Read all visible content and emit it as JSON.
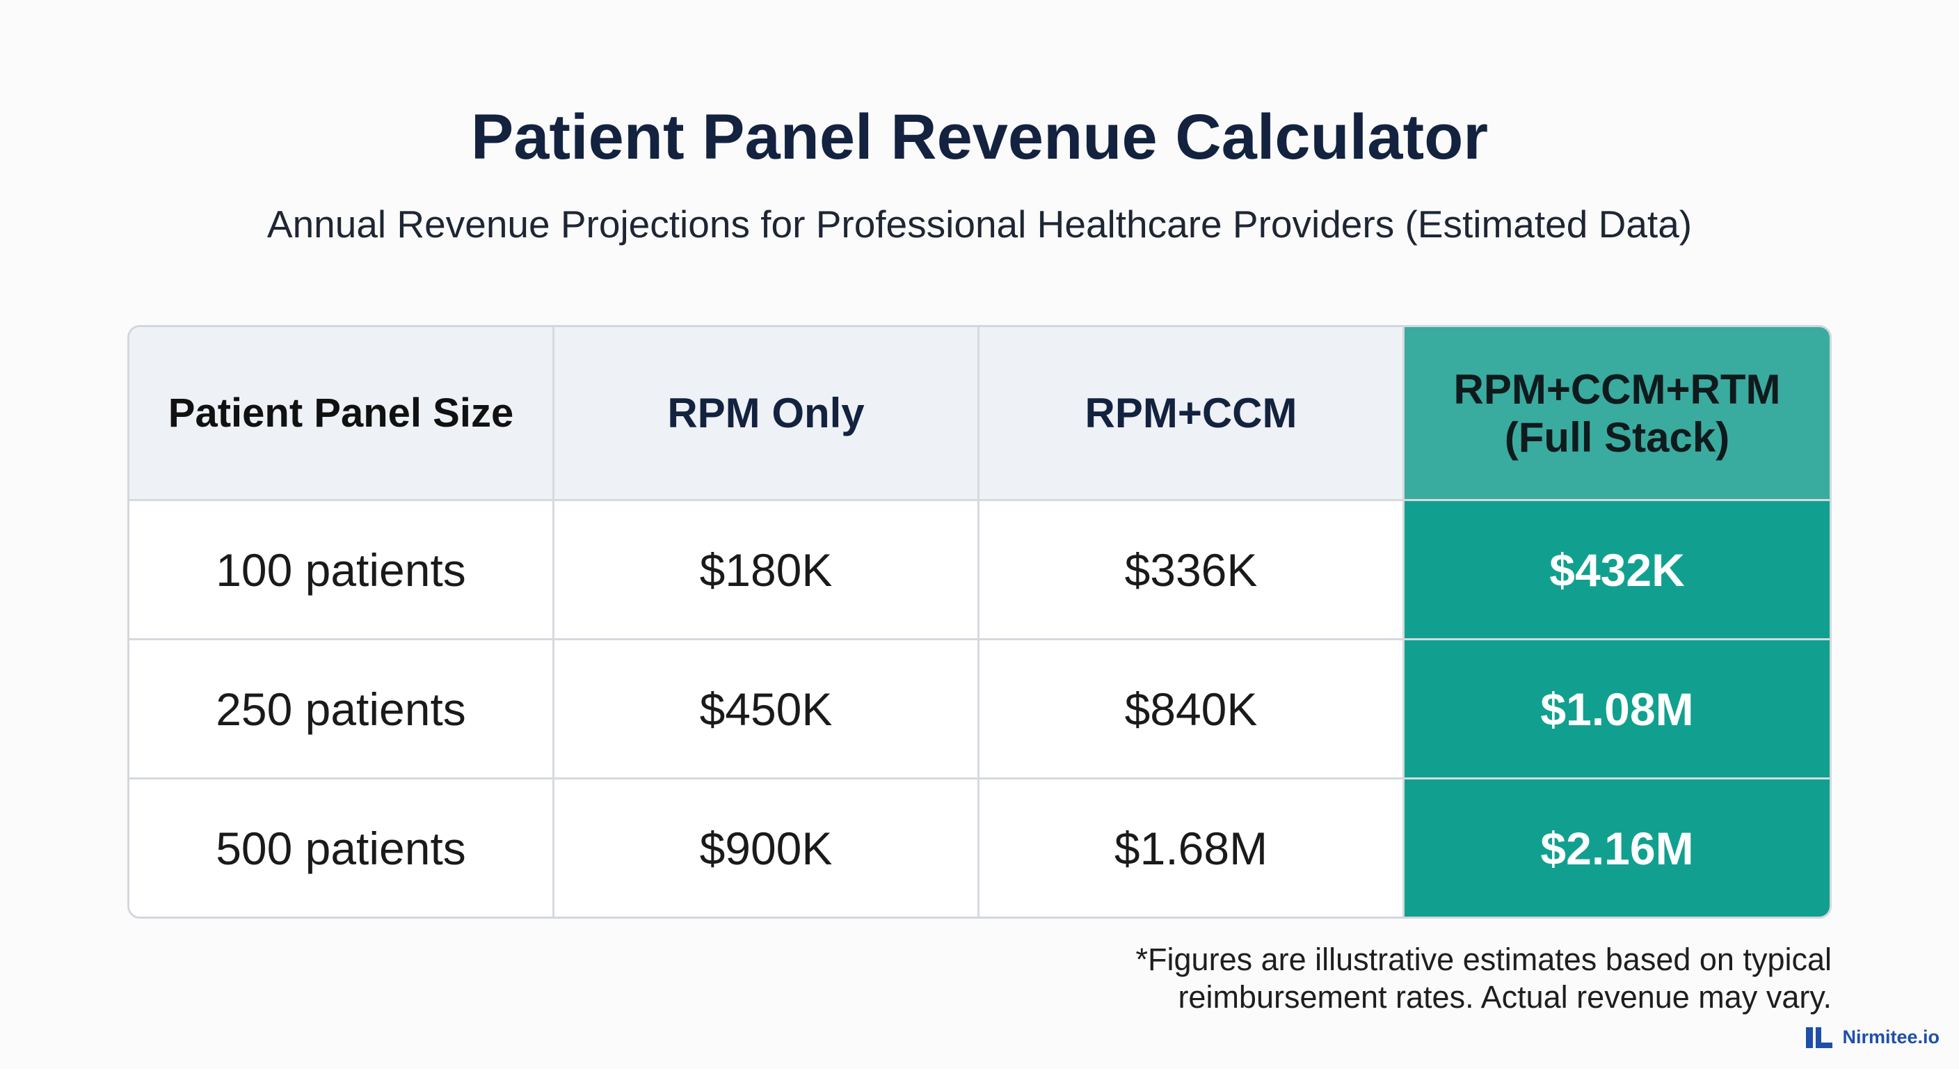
{
  "header": {
    "title": "Patient Panel Revenue Calculator",
    "subtitle": "Annual Revenue Projections for Professional Healthcare Providers (Estimated Data)"
  },
  "table": {
    "columns": [
      "Patient Panel Size",
      "RPM Only",
      "RPM+CCM",
      [
        "RPM+CCM+RTM",
        "(Full Stack)"
      ]
    ],
    "rows": [
      [
        "100 patients",
        "$180K",
        "$336K",
        "$432K"
      ],
      [
        "250 patients",
        "$450K",
        "$840K",
        "$1.08M"
      ],
      [
        "500 patients",
        "$900K",
        "$1.68M",
        "$2.16M"
      ]
    ]
  },
  "footnote": [
    "*Figures are illustrative estimates based on typical",
    "reimbursement rates. Actual revenue may vary."
  ],
  "logo": "Nirmitee.io"
}
